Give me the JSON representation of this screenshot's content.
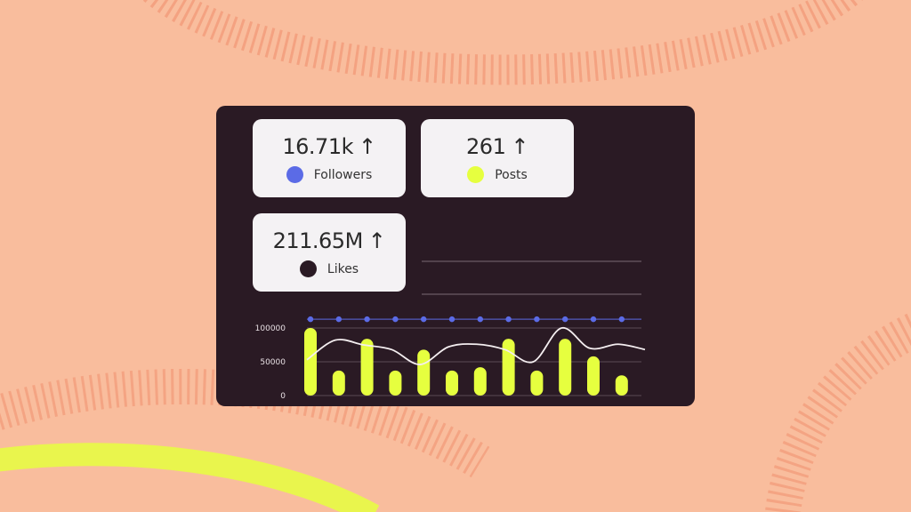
{
  "stats": [
    {
      "value": "16.71k",
      "arrow": "↑",
      "label": "Followers",
      "color": "#5b6be6"
    },
    {
      "value": "261",
      "arrow": "↑",
      "label": "Posts",
      "color": "#e6ff3f"
    },
    {
      "value": "211.65M",
      "arrow": "↑",
      "label": "Likes",
      "color": "#2a1a24"
    }
  ],
  "colors": {
    "background": "#f9bd9d",
    "card": "#2a1a24",
    "bars": "#e6ff3f",
    "line": "#f4eef0",
    "dots": "#5b6be6"
  },
  "chart_data": {
    "type": "bar",
    "ylim": [
      0,
      100000
    ],
    "yticks": [
      "0",
      "50000",
      "100000"
    ],
    "grid": true,
    "bars": [
      100000,
      37000,
      84000,
      37000,
      68000,
      37000,
      42000,
      84000,
      37000,
      84000,
      58000,
      30000
    ],
    "line": [
      53000,
      82000,
      75000,
      68000,
      46000,
      72000,
      76000,
      68000,
      50000,
      100000,
      70000,
      76000
    ],
    "dots": [
      113000,
      113000,
      113000,
      113000,
      113000,
      113000,
      113000,
      113000,
      113000,
      113000,
      113000,
      113000
    ]
  }
}
